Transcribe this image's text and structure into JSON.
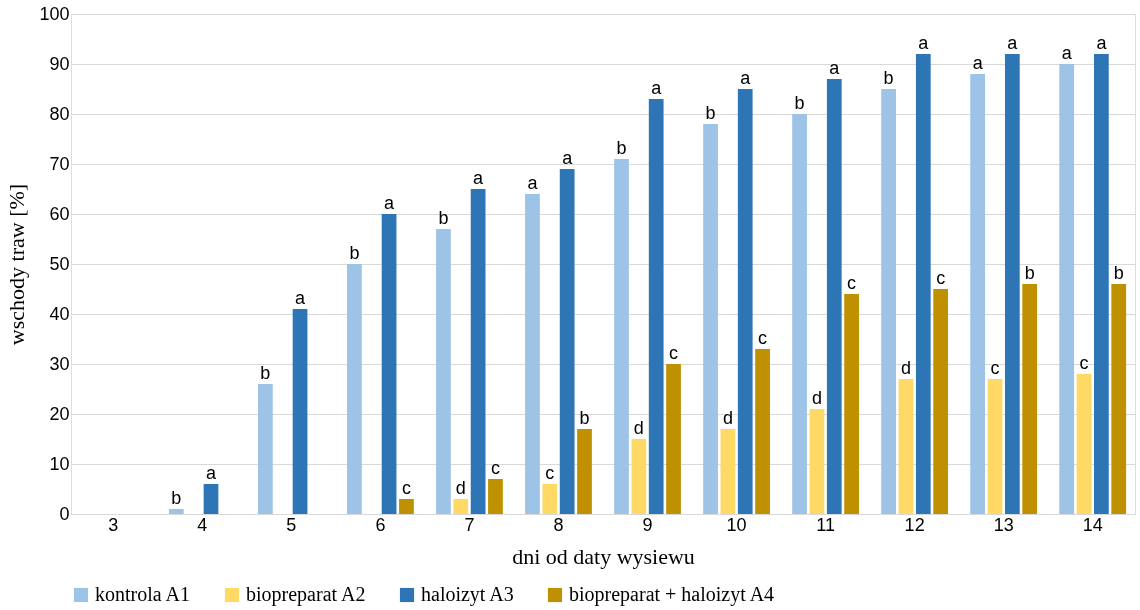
{
  "chart_data": {
    "type": "bar",
    "xlabel": "dni od daty wysiewu",
    "ylabel": "wschody traw [%]",
    "categories": [
      "3",
      "4",
      "5",
      "6",
      "7",
      "8",
      "9",
      "10",
      "11",
      "12",
      "13",
      "14"
    ],
    "series": [
      {
        "name": "kontrola A1",
        "color": "#9dc3e6",
        "values": [
          null,
          1,
          26,
          50,
          57,
          64,
          71,
          78,
          80,
          85,
          88,
          90
        ],
        "value_labels": [
          null,
          "b",
          "b",
          "b",
          "b",
          "a",
          "b",
          "b",
          "b",
          "b",
          "a",
          "a"
        ]
      },
      {
        "name": "biopreparat A2",
        "color": "#ffd966",
        "values": [
          null,
          null,
          null,
          null,
          3,
          6,
          15,
          17,
          21,
          27,
          27,
          28
        ],
        "value_labels": [
          null,
          null,
          null,
          null,
          "d",
          "c",
          "d",
          "d",
          "d",
          "d",
          "c",
          "c"
        ]
      },
      {
        "name": "haloizyt A3",
        "color": "#2e75b6",
        "values": [
          null,
          6,
          41,
          60,
          65,
          69,
          83,
          85,
          87,
          92,
          92,
          92
        ],
        "value_labels": [
          null,
          "a",
          "a",
          "a",
          "a",
          "a",
          "a",
          "a",
          "a",
          "a",
          "a",
          "a"
        ]
      },
      {
        "name": "biopreparat + haloizyt A4",
        "color": "#bf9000",
        "values": [
          null,
          null,
          null,
          3,
          7,
          17,
          30,
          33,
          44,
          45,
          46,
          46
        ],
        "value_labels": [
          null,
          null,
          null,
          "c",
          "c",
          "b",
          "c",
          "c",
          "c",
          "c",
          "b",
          "b"
        ]
      }
    ],
    "ylim": [
      0,
      100
    ],
    "yticks": [
      0,
      10,
      20,
      30,
      40,
      50,
      60,
      70,
      80,
      90,
      100
    ],
    "grid": "y",
    "legend": "bottom"
  }
}
